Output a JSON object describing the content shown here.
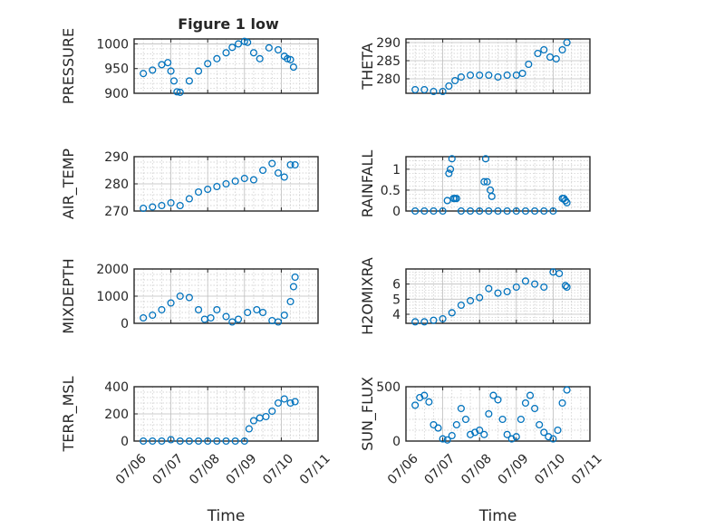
{
  "figure": {
    "title": "Figure 1 low"
  },
  "colors": {
    "marker": "#0072BD",
    "axis": "#262626",
    "grid": "#c8c8c8",
    "background": "#ffffff"
  },
  "chart_data": [
    {
      "id": "pressure",
      "type": "scatter",
      "ylabel": "PRESSURE",
      "xlabel": "",
      "xlim": [
        "07/06",
        "07/11"
      ],
      "ylim": [
        900,
        1010
      ],
      "yticks": [
        900,
        950,
        1000
      ],
      "xtick_labels": [],
      "grid": true,
      "marker": "circle",
      "x": [
        "07/06 06:00",
        "07/06 12:00",
        "07/06 18:00",
        "07/06 22:00",
        "07/07 00:00",
        "07/07 02:00",
        "07/07 04:00",
        "07/07 06:00",
        "07/07 12:00",
        "07/07 18:00",
        "07/08 00:00",
        "07/08 06:00",
        "07/08 12:00",
        "07/08 16:00",
        "07/08 20:00",
        "07/09 00:00",
        "07/09 02:00",
        "07/09 06:00",
        "07/09 10:00",
        "07/09 16:00",
        "07/09 22:00",
        "07/10 02:00",
        "07/10 04:00",
        "07/10 06:00",
        "07/10 08:00"
      ],
      "y": [
        940,
        947,
        958,
        962,
        945,
        925,
        903,
        902,
        925,
        945,
        960,
        970,
        982,
        993,
        1000,
        1005,
        1003,
        982,
        970,
        992,
        988,
        975,
        970,
        968,
        953
      ]
    },
    {
      "id": "theta",
      "type": "scatter",
      "ylabel": "THETA",
      "xlabel": "",
      "xlim": [
        "07/06",
        "07/11"
      ],
      "ylim": [
        276,
        291
      ],
      "yticks": [
        280,
        285,
        290
      ],
      "xtick_labels": [],
      "grid": true,
      "marker": "circle",
      "x": [
        "07/06 06:00",
        "07/06 12:00",
        "07/06 18:00",
        "07/07 00:00",
        "07/07 04:00",
        "07/07 08:00",
        "07/07 12:00",
        "07/07 18:00",
        "07/08 00:00",
        "07/08 06:00",
        "07/08 12:00",
        "07/08 18:00",
        "07/09 00:00",
        "07/09 04:00",
        "07/09 08:00",
        "07/09 14:00",
        "07/09 18:00",
        "07/09 22:00",
        "07/10 02:00",
        "07/10 06:00",
        "07/10 09:00"
      ],
      "y": [
        277,
        277,
        276.5,
        276.5,
        278,
        279.5,
        280.5,
        281,
        281,
        281,
        280.5,
        281,
        281,
        281.5,
        284,
        287,
        288,
        286,
        285.5,
        288,
        290
      ]
    },
    {
      "id": "air_temp",
      "type": "scatter",
      "ylabel": "AIR_TEMP",
      "xlabel": "",
      "xlim": [
        "07/06",
        "07/11"
      ],
      "ylim": [
        270,
        290
      ],
      "yticks": [
        270,
        280,
        290
      ],
      "xtick_labels": [],
      "grid": true,
      "marker": "circle",
      "x": [
        "07/06 06:00",
        "07/06 12:00",
        "07/06 18:00",
        "07/07 00:00",
        "07/07 06:00",
        "07/07 12:00",
        "07/07 18:00",
        "07/08 00:00",
        "07/08 06:00",
        "07/08 12:00",
        "07/08 18:00",
        "07/09 00:00",
        "07/09 06:00",
        "07/09 12:00",
        "07/09 18:00",
        "07/09 22:00",
        "07/10 02:00",
        "07/10 06:00",
        "07/10 09:00"
      ],
      "y": [
        271,
        271.5,
        272,
        273,
        272,
        274.5,
        277,
        278,
        279,
        280,
        281,
        282,
        281.5,
        285,
        287.5,
        284,
        282.5,
        287,
        287
      ]
    },
    {
      "id": "rainfall",
      "type": "scatter",
      "ylabel": "RAINFALL",
      "xlabel": "",
      "xlim": [
        "07/06",
        "07/11"
      ],
      "ylim": [
        0,
        1.3
      ],
      "yticks": [
        0,
        0.5,
        1
      ],
      "xtick_labels": [],
      "grid": true,
      "marker": "circle",
      "x": [
        "07/06 06:00",
        "07/06 12:00",
        "07/06 18:00",
        "07/07 00:00",
        "07/07 03:00",
        "07/07 04:00",
        "07/07 05:00",
        "07/07 06:00",
        "07/07 07:00",
        "07/07 08:00",
        "07/07 09:00",
        "07/07 12:00",
        "07/07 18:00",
        "07/08 00:00",
        "07/08 03:00",
        "07/08 04:00",
        "07/08 05:00",
        "07/08 06:00",
        "07/08 07:00",
        "07/08 08:00",
        "07/08 12:00",
        "07/08 18:00",
        "07/09 00:00",
        "07/09 06:00",
        "07/09 12:00",
        "07/09 18:00",
        "07/10 00:00",
        "07/10 06:00",
        "07/10 07:00",
        "07/10 08:00",
        "07/10 09:00"
      ],
      "y": [
        0,
        0,
        0,
        0,
        0.25,
        0.9,
        1,
        1.25,
        0.3,
        0.3,
        0.3,
        0,
        0,
        0,
        0.7,
        1.25,
        0.7,
        0,
        0.5,
        0.35,
        0,
        0,
        0,
        0,
        0,
        0,
        0,
        0.3,
        0.3,
        0.25,
        0.2
      ]
    },
    {
      "id": "mixdepth",
      "type": "scatter",
      "ylabel": "MIXDEPTH",
      "xlabel": "",
      "xlim": [
        "07/06",
        "07/11"
      ],
      "ylim": [
        0,
        2000
      ],
      "yticks": [
        0,
        1000,
        2000
      ],
      "xtick_labels": [],
      "grid": true,
      "marker": "circle",
      "x": [
        "07/06 06:00",
        "07/06 12:00",
        "07/06 18:00",
        "07/07 00:00",
        "07/07 06:00",
        "07/07 12:00",
        "07/07 18:00",
        "07/07 22:00",
        "07/08 02:00",
        "07/08 06:00",
        "07/08 12:00",
        "07/08 16:00",
        "07/08 20:00",
        "07/09 02:00",
        "07/09 08:00",
        "07/09 12:00",
        "07/09 18:00",
        "07/09 22:00",
        "07/10 02:00",
        "07/10 06:00",
        "07/10 08:00",
        "07/10 09:00"
      ],
      "y": [
        200,
        300,
        500,
        750,
        1000,
        950,
        500,
        150,
        200,
        500,
        250,
        50,
        150,
        400,
        500,
        400,
        100,
        50,
        300,
        800,
        1350,
        1700
      ]
    },
    {
      "id": "h2omixra",
      "type": "scatter",
      "ylabel": "H2OMIXRA",
      "xlabel": "",
      "xlim": [
        "07/06",
        "07/11"
      ],
      "ylim": [
        3.4,
        7
      ],
      "yticks": [
        4,
        5,
        6
      ],
      "xtick_labels": [],
      "grid": true,
      "marker": "circle",
      "x": [
        "07/06 06:00",
        "07/06 12:00",
        "07/06 18:00",
        "07/07 00:00",
        "07/07 06:00",
        "07/07 12:00",
        "07/07 18:00",
        "07/08 00:00",
        "07/08 06:00",
        "07/08 12:00",
        "07/08 18:00",
        "07/09 00:00",
        "07/09 06:00",
        "07/09 12:00",
        "07/09 18:00",
        "07/10 00:00",
        "07/10 04:00",
        "07/10 08:00",
        "07/10 09:00"
      ],
      "y": [
        3.5,
        3.5,
        3.6,
        3.7,
        4.1,
        4.6,
        4.9,
        5.1,
        5.7,
        5.4,
        5.5,
        5.8,
        6.2,
        6.0,
        5.8,
        6.8,
        6.7,
        5.9,
        5.8
      ]
    },
    {
      "id": "terr_msl",
      "type": "scatter",
      "ylabel": "TERR_MSL",
      "xlabel": "Time",
      "xlim": [
        "07/06",
        "07/11"
      ],
      "ylim": [
        0,
        400
      ],
      "yticks": [
        0,
        200,
        400
      ],
      "xtick_labels": [
        "07/06",
        "07/07",
        "07/08",
        "07/09",
        "07/10",
        "07/11"
      ],
      "grid": true,
      "marker": "circle",
      "x": [
        "07/06 06:00",
        "07/06 12:00",
        "07/06 18:00",
        "07/07 00:00",
        "07/07 06:00",
        "07/07 12:00",
        "07/07 18:00",
        "07/08 00:00",
        "07/08 06:00",
        "07/08 12:00",
        "07/08 18:00",
        "07/09 00:00",
        "07/09 03:00",
        "07/09 06:00",
        "07/09 10:00",
        "07/09 14:00",
        "07/09 18:00",
        "07/09 22:00",
        "07/10 02:00",
        "07/10 06:00",
        "07/10 09:00"
      ],
      "y": [
        0,
        0,
        0,
        10,
        0,
        0,
        0,
        0,
        0,
        0,
        0,
        0,
        90,
        150,
        170,
        180,
        220,
        280,
        310,
        280,
        290
      ]
    },
    {
      "id": "sun_flux",
      "type": "scatter",
      "ylabel": "SUN_FLUX",
      "xlabel": "Time",
      "xlim": [
        "07/06",
        "07/11"
      ],
      "ylim": [
        0,
        500
      ],
      "yticks": [
        0,
        500
      ],
      "xtick_labels": [
        "07/06",
        "07/07",
        "07/08",
        "07/09",
        "07/10",
        "07/11"
      ],
      "grid": true,
      "marker": "circle",
      "x": [
        "07/06 06:00",
        "07/06 09:00",
        "07/06 12:00",
        "07/06 15:00",
        "07/06 18:00",
        "07/06 21:00",
        "07/07 00:00",
        "07/07 03:00",
        "07/07 06:00",
        "07/07 09:00",
        "07/07 12:00",
        "07/07 15:00",
        "07/07 18:00",
        "07/07 21:00",
        "07/08 00:00",
        "07/08 03:00",
        "07/08 06:00",
        "07/08 09:00",
        "07/08 12:00",
        "07/08 15:00",
        "07/08 18:00",
        "07/08 21:00",
        "07/09 00:00",
        "07/09 03:00",
        "07/09 06:00",
        "07/09 09:00",
        "07/09 12:00",
        "07/09 15:00",
        "07/09 18:00",
        "07/09 21:00",
        "07/10 00:00",
        "07/10 03:00",
        "07/10 06:00",
        "07/10 09:00"
      ],
      "y": [
        330,
        400,
        420,
        360,
        150,
        120,
        20,
        10,
        50,
        150,
        300,
        200,
        60,
        80,
        100,
        60,
        250,
        420,
        380,
        200,
        60,
        20,
        40,
        200,
        350,
        420,
        300,
        150,
        80,
        40,
        20,
        100,
        350,
        470
      ]
    }
  ]
}
